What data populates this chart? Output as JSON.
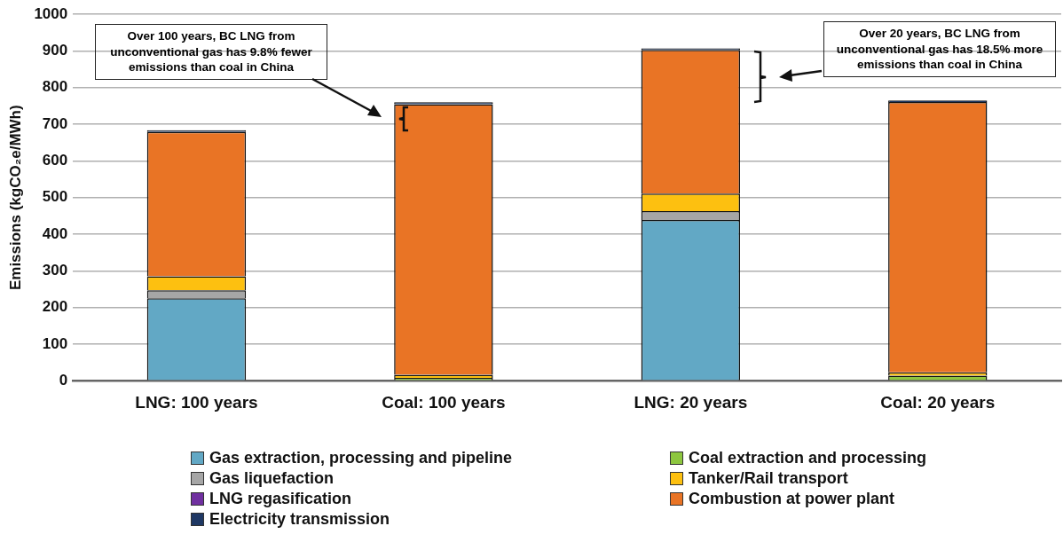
{
  "chart_data": {
    "type": "bar",
    "stacked": true,
    "ylabel": "Emissions (kgCO₂e/MWh)",
    "categories": [
      "LNG: 100 years",
      "Coal: 100 years",
      "LNG: 20 years",
      "Coal: 20 years"
    ],
    "series": [
      {
        "name": "Gas extraction, processing and pipeline",
        "color": "#62a8c5",
        "values": [
          225,
          0,
          439,
          0
        ]
      },
      {
        "name": "Coal extraction and processing",
        "color": "#8dc63f",
        "values": [
          0,
          8,
          0,
          14
        ]
      },
      {
        "name": "Gas liquefaction",
        "color": "#a6a6a6",
        "values": [
          22,
          0,
          24,
          0
        ]
      },
      {
        "name": "Tanker/Rail transport",
        "color": "#fdc010",
        "values": [
          38,
          8,
          48,
          9
        ]
      },
      {
        "name": "LNG regasification",
        "color": "#7030a0",
        "values": [
          null,
          0,
          null,
          0
        ]
      },
      {
        "name": "Combustion at power plant",
        "color": "#e97425",
        "values": [
          394,
          739,
          392,
          738
        ]
      },
      {
        "name": "Electricity transmission",
        "color": "#1f3864",
        "values": [
          5,
          5,
          4,
          4
        ]
      }
    ],
    "ylim": [
      0,
      1000
    ],
    "yticks": [
      0,
      100,
      200,
      300,
      400,
      500,
      600,
      700,
      800,
      900,
      1000
    ],
    "grid": "y",
    "legend": "bottom",
    "annotations": [
      "Over 100 years, BC LNG from unconventional gas has 9.8% fewer emissions than coal in China",
      "Over 20 years, BC LNG from unconventional gas has 18.5% more emissions than coal in China"
    ]
  }
}
